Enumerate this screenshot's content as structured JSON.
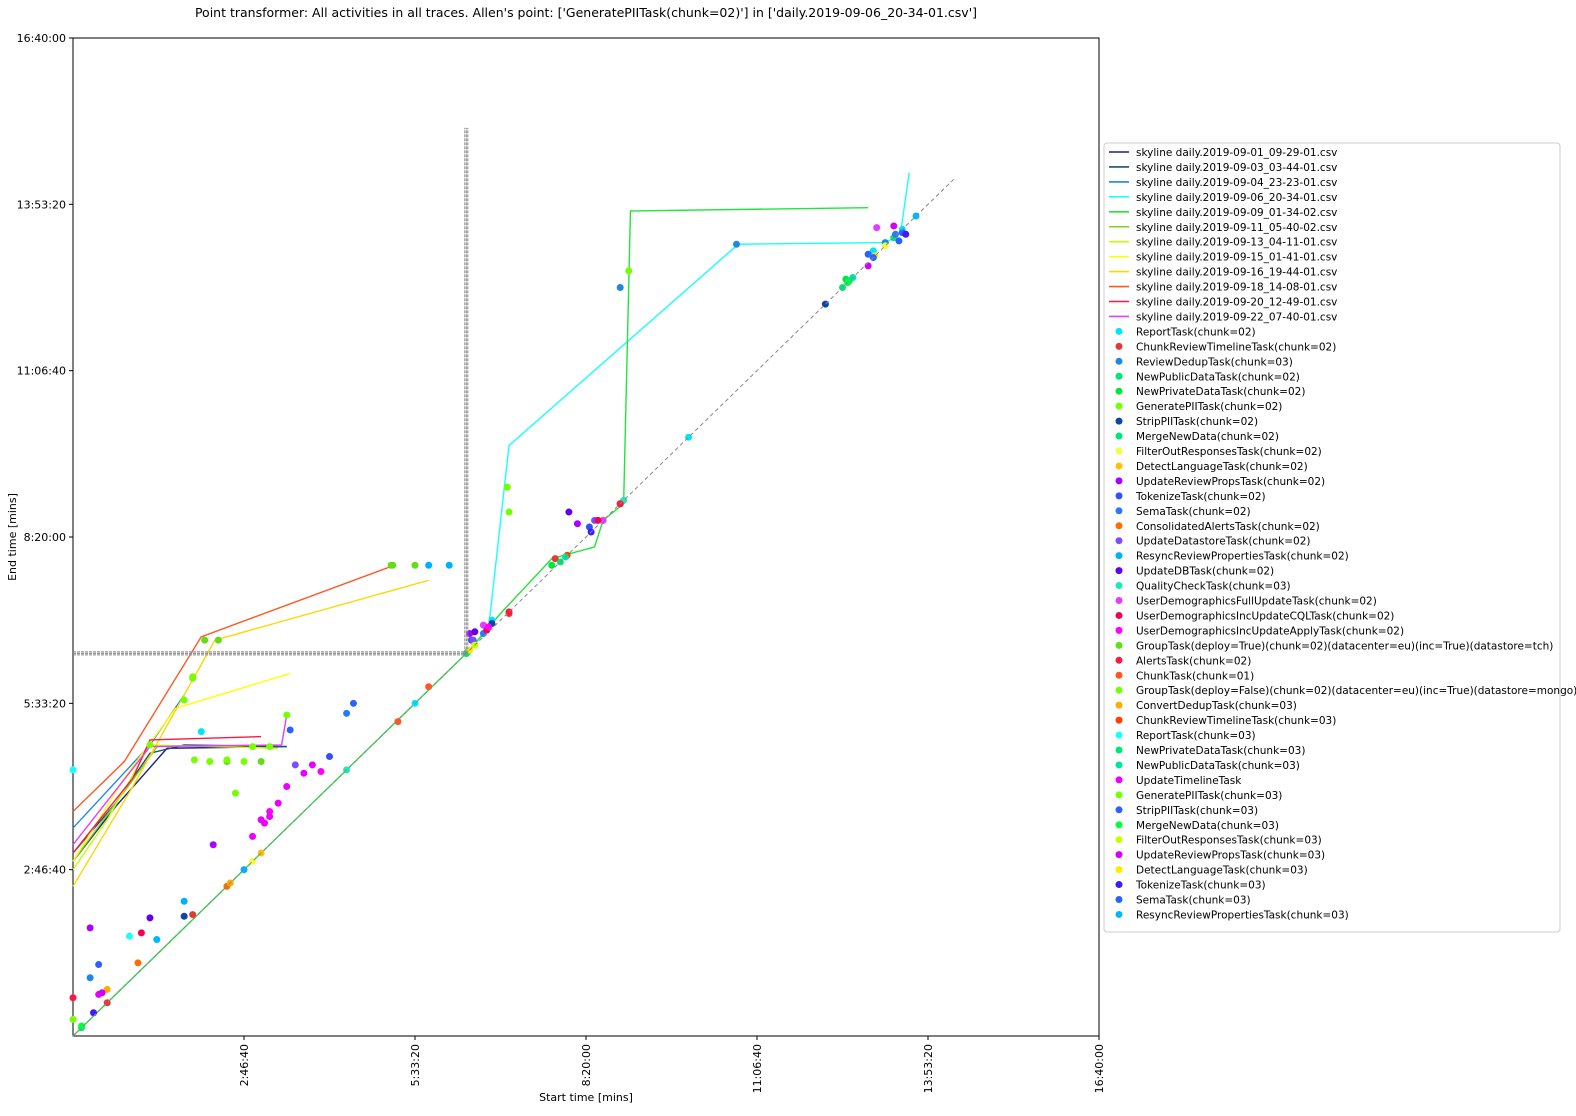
{
  "chart_data": {
    "type": "scatter",
    "title": "Point transformer: All activities in all traces. Allen's point: ['GeneratePIITask(chunk=02)'] in ['daily.2019-09-06_20-34-01.csv']",
    "xlabel": "Start time [mins]",
    "ylabel": "End time [mins]",
    "xlim": [
      0,
      60000
    ],
    "ylim": [
      0,
      60000
    ],
    "x_ticks": [
      {
        "value": 10000,
        "label": "2:46:40"
      },
      {
        "value": 20000,
        "label": "5:33:20"
      },
      {
        "value": 30000,
        "label": "8:20:00"
      },
      {
        "value": 40000,
        "label": "11:06:40"
      },
      {
        "value": 50000,
        "label": "13:53:20"
      },
      {
        "value": 60000,
        "label": "16:40:00"
      }
    ],
    "y_ticks": [
      {
        "value": 10000,
        "label": "2:46:40"
      },
      {
        "value": 20000,
        "label": "5:33:20"
      },
      {
        "value": 30000,
        "label": "8:20:00"
      },
      {
        "value": 40000,
        "label": "11:06:40"
      },
      {
        "value": 50000,
        "label": "13:53:20"
      },
      {
        "value": 60000,
        "label": "16:40:00"
      }
    ],
    "legend_position": "right",
    "diagonal": {
      "x": [
        0,
        51500
      ],
      "y": [
        0,
        51500
      ]
    },
    "allen_point": {
      "x": 23000,
      "y": 23000,
      "vline_top": 54600,
      "hline_left": 0
    },
    "line_series": [
      {
        "name": "skyline daily.2019-09-01_09-29-01.csv",
        "color": "#1a237e",
        "x": [
          0,
          2500,
          5500,
          12500
        ],
        "y": [
          10500,
          13800,
          17300,
          17400
        ]
      },
      {
        "name": "skyline daily.2019-09-03_03-44-01.csv",
        "color": "#1f4e79",
        "x": [
          0,
          2500,
          4500,
          6500,
          12500
        ],
        "y": [
          11000,
          14000,
          17000,
          17500,
          17400
        ]
      },
      {
        "name": "skyline daily.2019-09-04_23-23-01.csv",
        "color": "#1e88e5",
        "x": [
          0,
          4500,
          6500
        ],
        "y": [
          12500,
          17500,
          20500
        ]
      },
      {
        "name": "skyline daily.2019-09-06_20-34-01.csv",
        "color": "#18ffff",
        "x": [
          23000,
          24300,
          25500,
          38900,
          47500,
          48000,
          48400,
          48900
        ],
        "y": [
          23000,
          24500,
          35500,
          47600,
          47700,
          48000,
          48300,
          51900
        ]
      },
      {
        "name": "skyline daily.2019-09-09_01-34-02.csv",
        "color": "#22e53c",
        "x": [
          0,
          23000,
          25000,
          28000,
          30500,
          31000,
          32200,
          32600,
          46500
        ],
        "y": [
          0,
          23000,
          25400,
          28700,
          29400,
          31000,
          32000,
          49600,
          49800
        ]
      },
      {
        "name": "skyline daily.2019-09-11_05-40-02.csv",
        "color": "#7ed321",
        "x": [
          0,
          2500,
          5000
        ],
        "y": [
          10500,
          14000,
          17500
        ]
      },
      {
        "name": "skyline daily.2019-09-13_04-11-01.csv",
        "color": "#c6ff00",
        "x": [
          0,
          2000,
          4500,
          12000
        ],
        "y": [
          10000,
          13000,
          17500,
          17300
        ]
      },
      {
        "name": "skyline daily.2019-09-15_01-41-01.csv",
        "color": "#ffff00",
        "x": [
          0,
          3000,
          6000,
          12700
        ],
        "y": [
          10500,
          15500,
          19700,
          21800
        ]
      },
      {
        "name": "skyline daily.2019-09-16_19-44-01.csv",
        "color": "#ffd600",
        "x": [
          0,
          3500,
          8300,
          20800
        ],
        "y": [
          9000,
          15000,
          23800,
          27400
        ]
      },
      {
        "name": "skyline daily.2019-09-18_14-08-01.csv",
        "color": "#ff5722",
        "x": [
          0,
          3000,
          7500,
          18800
        ],
        "y": [
          13500,
          16500,
          24000,
          28300
        ]
      },
      {
        "name": "skyline daily.2019-09-20_12-49-01.csv",
        "color": "#ff1744",
        "x": [
          0,
          3500,
          4500,
          11000
        ],
        "y": [
          11000,
          15500,
          17800,
          18000
        ]
      },
      {
        "name": "skyline daily.2019-09-22_07-40-01.csv",
        "color": "#e040fb",
        "x": [
          0,
          4500,
          12200,
          12500
        ],
        "y": [
          11500,
          17400,
          17500,
          19300
        ]
      }
    ],
    "scatter_series": [
      {
        "name": "ReportTask(chunk=02)",
        "color": "#00e5ff",
        "points": [
          [
            7500,
            18300
          ],
          [
            24500,
            25000
          ],
          [
            46800,
            47200
          ],
          [
            48500,
            48500
          ],
          [
            36000,
            36000
          ],
          [
            20000,
            20000
          ]
        ]
      },
      {
        "name": "ChunkReviewTimelineTask(chunk=02)",
        "color": "#e53935",
        "points": [
          [
            28200,
            28700
          ],
          [
            32000,
            32000
          ],
          [
            25500,
            25400
          ],
          [
            7000,
            7300
          ],
          [
            2000,
            2000
          ]
        ]
      },
      {
        "name": "ReviewDedupTask(chunk=03)",
        "color": "#1e88e5",
        "points": [
          [
            32000,
            45000
          ],
          [
            38800,
            47600
          ],
          [
            47500,
            47700
          ],
          [
            1000,
            3500
          ]
        ]
      },
      {
        "name": "NewPublicDataTask(chunk=02)",
        "color": "#00e676",
        "points": [
          [
            48000,
            48000
          ],
          [
            23100,
            23100
          ],
          [
            28500,
            28500
          ],
          [
            500,
            500
          ]
        ]
      },
      {
        "name": "NewPrivateDataTask(chunk=02)",
        "color": "#00e640",
        "points": [
          [
            23000,
            23000
          ],
          [
            28000,
            28300
          ],
          [
            45200,
            45500
          ]
        ]
      },
      {
        "name": "GeneratePIITask(chunk=02)",
        "color": "#76ff03",
        "points": [
          [
            23000,
            23000
          ],
          [
            25400,
            33000
          ],
          [
            10500,
            17400
          ],
          [
            7000,
            21600
          ]
        ]
      },
      {
        "name": "StripPIITask(chunk=02)",
        "color": "#0d47a1",
        "points": [
          [
            24500,
            24800
          ],
          [
            44000,
            44000
          ],
          [
            6500,
            7200
          ]
        ]
      },
      {
        "name": "MergeNewData(chunk=02)",
        "color": "#00e676",
        "points": [
          [
            23000,
            23000
          ],
          [
            45000,
            45000
          ]
        ]
      },
      {
        "name": "FilterOutResponsesTask(chunk=02)",
        "color": "#eeff41",
        "points": [
          [
            47500,
            47500
          ],
          [
            10500,
            10500
          ]
        ]
      },
      {
        "name": "DetectLanguageTask(chunk=02)",
        "color": "#ffc107",
        "points": [
          [
            23500,
            23500
          ],
          [
            11000,
            11000
          ]
        ]
      },
      {
        "name": "UpdateReviewPropsTask(chunk=02)",
        "color": "#aa00ff",
        "points": [
          [
            23200,
            24200
          ],
          [
            29500,
            30800
          ],
          [
            8200,
            11500
          ],
          [
            1000,
            6500
          ]
        ]
      },
      {
        "name": "TokenizeTask(chunk=02)",
        "color": "#304ffe",
        "points": [
          [
            23300,
            23800
          ],
          [
            30200,
            30600
          ],
          [
            15000,
            16800
          ]
        ]
      },
      {
        "name": "SemaTask(chunk=02)",
        "color": "#2979ff",
        "points": [
          [
            24000,
            24200
          ],
          [
            31000,
            31000
          ],
          [
            48100,
            48200
          ],
          [
            16000,
            19400
          ]
        ]
      },
      {
        "name": "ConsolidatedAlertsTask(chunk=02)",
        "color": "#ff6d00",
        "points": [
          [
            9000,
            9000
          ],
          [
            3800,
            4400
          ]
        ]
      },
      {
        "name": "UpdateDatastoreTask(chunk=02)",
        "color": "#7c4dff",
        "points": [
          [
            23400,
            23800
          ],
          [
            30500,
            31000
          ],
          [
            13000,
            16300
          ]
        ]
      },
      {
        "name": "ResyncReviewPropertiesTask(chunk=02)",
        "color": "#00b0ff",
        "points": [
          [
            22000,
            28300
          ],
          [
            20800,
            28300
          ],
          [
            10000,
            10000
          ],
          [
            6500,
            8100
          ]
        ]
      },
      {
        "name": "UpdateDBTask(chunk=02)",
        "color": "#6200ea",
        "points": [
          [
            23500,
            24300
          ],
          [
            29000,
            31500
          ],
          [
            4500,
            7100
          ]
        ]
      },
      {
        "name": "QualityCheckTask(chunk=03)",
        "color": "#1de9b6",
        "points": [
          [
            32200,
            32200
          ],
          [
            16000,
            16000
          ]
        ]
      },
      {
        "name": "UserDemographicsFullUpdateTask(chunk=02)",
        "color": "#e040fb",
        "points": [
          [
            24000,
            24700
          ],
          [
            31000,
            31000
          ],
          [
            47000,
            48600
          ]
        ]
      },
      {
        "name": "UserDemographicsIncUpdateCQLTask(chunk=02)",
        "color": "#f50057",
        "points": [
          [
            24200,
            24400
          ],
          [
            30700,
            31000
          ],
          [
            4000,
            6200
          ]
        ]
      },
      {
        "name": "UserDemographicsIncUpdateApplyTask(chunk=02)",
        "color": "#ff00ff",
        "points": [
          [
            24300,
            24600
          ],
          [
            11500,
            13500
          ],
          [
            14500,
            15900
          ]
        ]
      },
      {
        "name": "GroupTask(deploy=True)(chunk=02)(datacenter=eu)(inc=True)(datastore=tch)",
        "color": "#64dd17",
        "points": [
          [
            7700,
            23800
          ],
          [
            8500,
            23800
          ],
          [
            18600,
            28300
          ],
          [
            20000,
            28300
          ],
          [
            18700,
            28300
          ],
          [
            9000,
            16500
          ],
          [
            11000,
            16500
          ]
        ]
      },
      {
        "name": "AlertsTask(chunk=02)",
        "color": "#ff1744",
        "points": [
          [
            25500,
            25500
          ],
          [
            32000,
            32000
          ],
          [
            0,
            2300
          ]
        ]
      },
      {
        "name": "ChunkTask(chunk=01)",
        "color": "#ff5722",
        "points": [
          [
            20800,
            21000
          ],
          [
            19000,
            18900
          ]
        ]
      },
      {
        "name": "GroupTask(deploy=False)(chunk=02)(datacenter=eu)(inc=True)(datastore=mongo)",
        "color": "#76ff03",
        "points": [
          [
            4500,
            17500
          ],
          [
            6500,
            20200
          ],
          [
            7000,
            21500
          ],
          [
            10000,
            16500
          ],
          [
            11500,
            17400
          ],
          [
            12500,
            19300
          ],
          [
            9500,
            14600
          ],
          [
            8000,
            16500
          ],
          [
            9000,
            16600
          ],
          [
            7100,
            16600
          ]
        ]
      },
      {
        "name": "ConvertDedupTask(chunk=03)",
        "color": "#ffab00",
        "points": [
          [
            2000,
            2800
          ],
          [
            9200,
            9200
          ]
        ]
      },
      {
        "name": "ChunkReviewTimelineTask(chunk=03)",
        "color": "#ff3d00",
        "points": [
          [
            28900,
            28900
          ],
          [
            45300,
            45300
          ]
        ]
      },
      {
        "name": "ReportTask(chunk=03)",
        "color": "#18ffff",
        "points": [
          [
            3300,
            6000
          ],
          [
            0,
            16000
          ]
        ]
      },
      {
        "name": "NewPrivateDataTask(chunk=03)",
        "color": "#00e676",
        "points": [
          [
            23000,
            23000
          ],
          [
            45400,
            45400
          ]
        ]
      },
      {
        "name": "NewPublicDataTask(chunk=03)",
        "color": "#00e5a0",
        "points": [
          [
            45600,
            45600
          ],
          [
            28800,
            28800
          ]
        ]
      },
      {
        "name": "UpdateTimelineTask",
        "color": "#ea00ff",
        "points": [
          [
            11000,
            13000
          ],
          [
            11200,
            12800
          ],
          [
            11500,
            13200
          ],
          [
            10500,
            12000
          ],
          [
            12000,
            14000
          ],
          [
            12500,
            15000
          ],
          [
            13500,
            15800
          ],
          [
            14000,
            16300
          ],
          [
            1500,
            2500
          ]
        ]
      },
      {
        "name": "GeneratePIITask(chunk=03)",
        "color": "#76ff03",
        "points": [
          [
            25500,
            31500
          ],
          [
            32500,
            46000
          ],
          [
            0,
            1000
          ]
        ]
      },
      {
        "name": "StripPIITask(chunk=03)",
        "color": "#2962ff",
        "points": [
          [
            48500,
            48300
          ],
          [
            46500,
            47000
          ],
          [
            1500,
            4300
          ]
        ]
      },
      {
        "name": "MergeNewData(chunk=03)",
        "color": "#00ff40",
        "points": [
          [
            45300,
            45300
          ],
          [
            500,
            600
          ]
        ]
      },
      {
        "name": "FilterOutResponsesTask(chunk=03)",
        "color": "#c6ff00",
        "points": [
          [
            46800,
            46800
          ],
          [
            23500,
            23500
          ]
        ]
      },
      {
        "name": "UpdateReviewPropsTask(chunk=03)",
        "color": "#d500f9",
        "points": [
          [
            46500,
            46300
          ],
          [
            48000,
            48700
          ],
          [
            1700,
            2600
          ]
        ]
      },
      {
        "name": "DetectLanguageTask(chunk=03)",
        "color": "#ffea00",
        "points": [
          [
            46900,
            46900
          ],
          [
            23200,
            23200
          ]
        ]
      },
      {
        "name": "TokenizeTask(chunk=03)",
        "color": "#3d1aff",
        "points": [
          [
            48700,
            48200
          ],
          [
            30300,
            30300
          ],
          [
            1200,
            1400
          ]
        ]
      },
      {
        "name": "SemaTask(chunk=03)",
        "color": "#2962ff",
        "points": [
          [
            48300,
            47800
          ],
          [
            46800,
            46800
          ],
          [
            16400,
            20000
          ],
          [
            12700,
            18400
          ]
        ]
      },
      {
        "name": "ResyncReviewPropertiesTask(chunk=03)",
        "color": "#00b8ff",
        "points": [
          [
            49300,
            49300
          ],
          [
            4900,
            5800
          ]
        ]
      }
    ]
  }
}
